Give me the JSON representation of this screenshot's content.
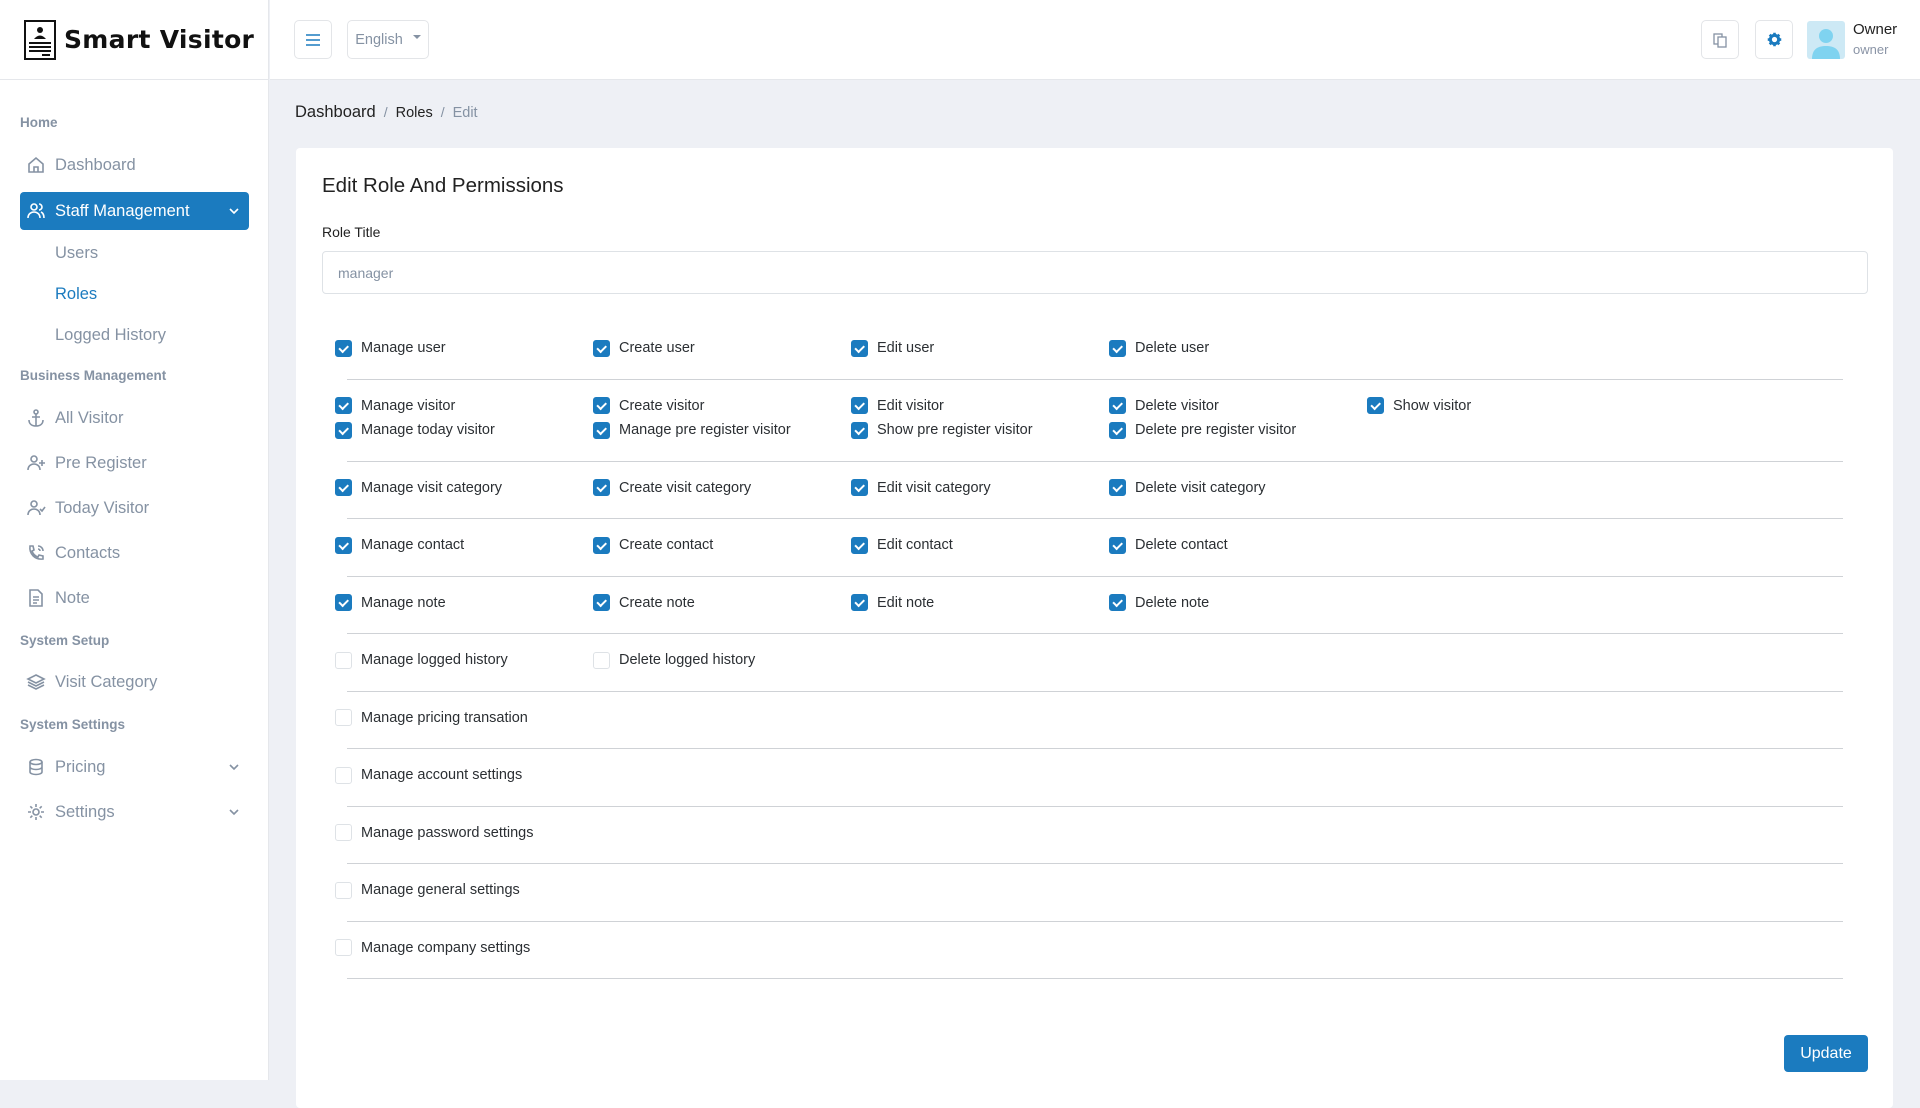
{
  "app": {
    "name": "Smart Visitor"
  },
  "header": {
    "language": "English",
    "user_name": "Owner",
    "user_role": "owner"
  },
  "sidebar": {
    "home_heading": "Home",
    "dashboard": "Dashboard",
    "staff_management": "Staff Management",
    "users": "Users",
    "roles": "Roles",
    "logged_history": "Logged History",
    "business_heading": "Business Management",
    "all_visitor": "All Visitor",
    "pre_register": "Pre Register",
    "today_visitor": "Today Visitor",
    "contacts": "Contacts",
    "note": "Note",
    "setup_heading": "System Setup",
    "visit_category": "Visit Category",
    "settings_heading": "System Settings",
    "pricing": "Pricing",
    "settings": "Settings"
  },
  "breadcrumb": {
    "items": [
      "Dashboard",
      "Roles",
      "Edit"
    ]
  },
  "form": {
    "title": "Edit Role And Permissions",
    "role_title_label": "Role Title",
    "role_title_value": "manager",
    "update_label": "Update",
    "accent": "#1b7bbf",
    "groups": [
      [
        [
          {
            "label": "Manage user",
            "checked": true
          },
          {
            "label": "Create user",
            "checked": true
          },
          {
            "label": "Edit user",
            "checked": true
          },
          {
            "label": "Delete user",
            "checked": true
          }
        ]
      ],
      [
        [
          {
            "label": "Manage visitor",
            "checked": true
          },
          {
            "label": "Create visitor",
            "checked": true
          },
          {
            "label": "Edit visitor",
            "checked": true
          },
          {
            "label": "Delete visitor",
            "checked": true
          },
          {
            "label": "Show visitor",
            "checked": true
          }
        ],
        [
          {
            "label": "Manage today visitor",
            "checked": true
          },
          {
            "label": "Manage pre register visitor",
            "checked": true
          },
          {
            "label": "Show pre register visitor",
            "checked": true
          },
          {
            "label": "Delete pre register visitor",
            "checked": true
          }
        ]
      ],
      [
        [
          {
            "label": "Manage visit category",
            "checked": true
          },
          {
            "label": "Create visit category",
            "checked": true
          },
          {
            "label": "Edit visit category",
            "checked": true
          },
          {
            "label": "Delete visit category",
            "checked": true
          }
        ]
      ],
      [
        [
          {
            "label": "Manage contact",
            "checked": true
          },
          {
            "label": "Create contact",
            "checked": true
          },
          {
            "label": "Edit contact",
            "checked": true
          },
          {
            "label": "Delete contact",
            "checked": true
          }
        ]
      ],
      [
        [
          {
            "label": "Manage note",
            "checked": true
          },
          {
            "label": "Create note",
            "checked": true
          },
          {
            "label": "Edit note",
            "checked": true
          },
          {
            "label": "Delete note",
            "checked": true
          }
        ]
      ],
      [
        [
          {
            "label": "Manage logged history",
            "checked": false
          },
          {
            "label": "Delete logged history",
            "checked": false
          }
        ]
      ],
      [
        [
          {
            "label": "Manage pricing transation",
            "checked": false
          }
        ]
      ],
      [
        [
          {
            "label": "Manage account settings",
            "checked": false
          }
        ]
      ],
      [
        [
          {
            "label": "Manage password settings",
            "checked": false
          }
        ]
      ],
      [
        [
          {
            "label": "Manage general settings",
            "checked": false
          }
        ]
      ],
      [
        [
          {
            "label": "Manage company settings",
            "checked": false
          }
        ]
      ]
    ]
  }
}
